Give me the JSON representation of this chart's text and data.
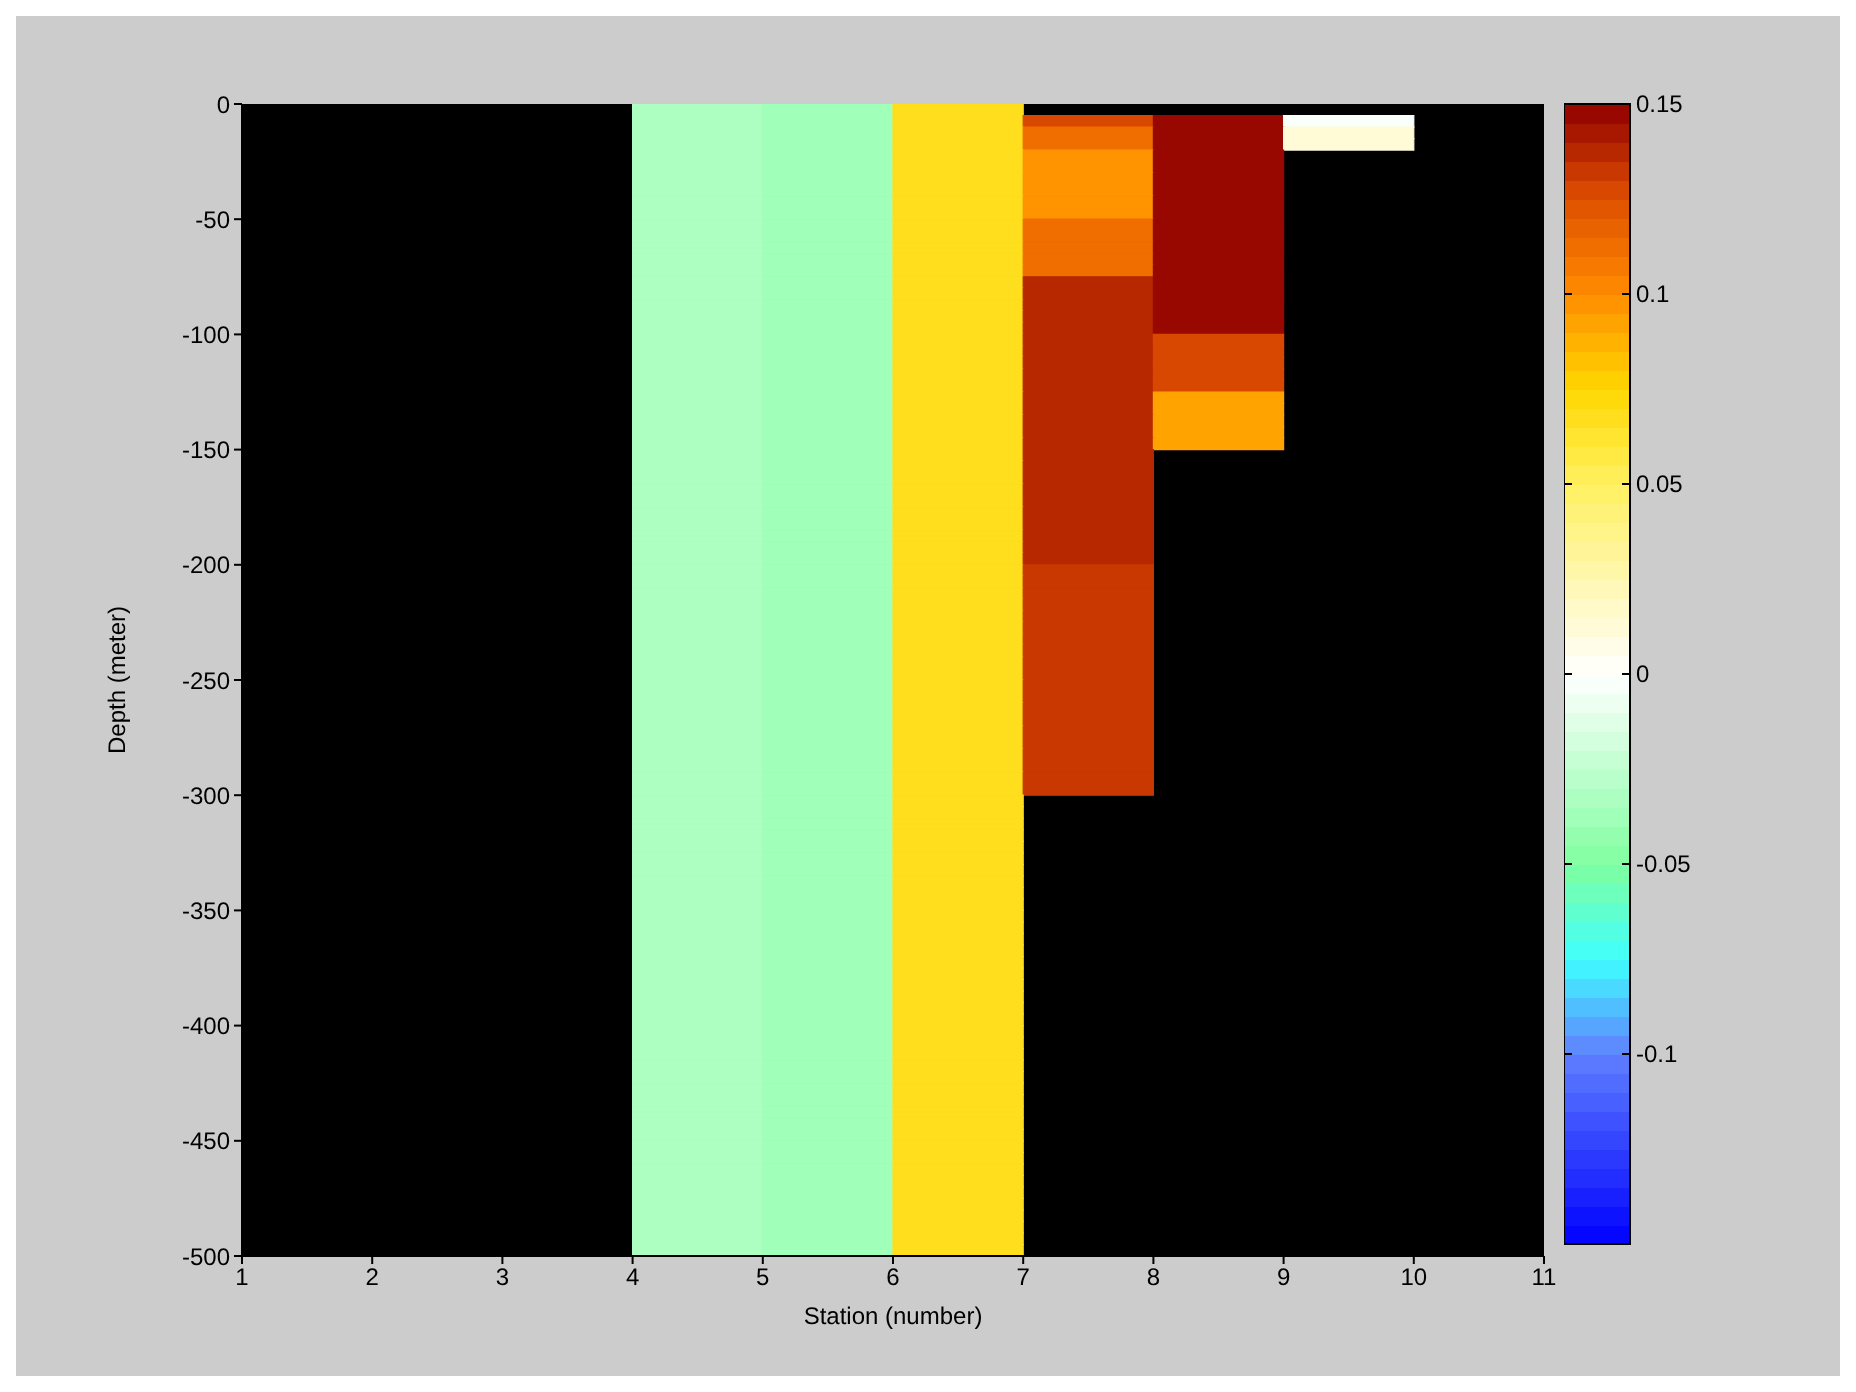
{
  "chart_data": {
    "type": "heatmap",
    "xlabel": "Station (number)",
    "ylabel": "Depth (meter)",
    "cells": [
      [
        null,
        null,
        null,
        -0.035,
        -0.04,
        0.065,
        null,
        null,
        null,
        null
      ],
      [
        null,
        null,
        null,
        -0.035,
        -0.04,
        0.065,
        0.125,
        0.15,
        -0.005,
        null
      ],
      [
        null,
        null,
        null,
        -0.035,
        -0.04,
        0.065,
        0.11,
        0.15,
        0.01,
        null
      ],
      [
        null,
        null,
        null,
        -0.035,
        -0.04,
        0.065,
        0.11,
        0.15,
        0.01,
        null
      ],
      [
        null,
        null,
        null,
        -0.035,
        -0.04,
        0.065,
        0.095,
        0.15,
        null,
        null
      ],
      [
        null,
        null,
        null,
        -0.035,
        -0.04,
        0.065,
        0.095,
        0.15,
        null,
        null
      ],
      [
        null,
        null,
        null,
        -0.035,
        -0.04,
        0.065,
        0.095,
        0.15,
        null,
        null
      ],
      [
        null,
        null,
        null,
        -0.035,
        -0.04,
        0.065,
        0.095,
        0.15,
        null,
        null
      ],
      [
        null,
        null,
        null,
        -0.035,
        -0.04,
        0.065,
        0.095,
        0.15,
        null,
        null
      ],
      [
        null,
        null,
        null,
        -0.035,
        -0.04,
        0.065,
        0.095,
        0.15,
        null,
        null
      ],
      [
        null,
        null,
        null,
        -0.035,
        -0.04,
        0.065,
        0.11,
        0.15,
        null,
        null
      ],
      [
        null,
        null,
        null,
        -0.035,
        -0.04,
        0.065,
        0.11,
        0.15,
        null,
        null
      ],
      [
        null,
        null,
        null,
        -0.035,
        -0.04,
        0.065,
        0.11,
        0.15,
        null,
        null
      ],
      [
        null,
        null,
        null,
        -0.035,
        -0.04,
        0.065,
        0.11,
        0.15,
        null,
        null
      ],
      [
        null,
        null,
        null,
        -0.035,
        -0.04,
        0.065,
        0.11,
        0.15,
        null,
        null
      ],
      [
        null,
        null,
        null,
        -0.035,
        -0.04,
        0.065,
        0.135,
        0.15,
        null,
        null
      ],
      [
        null,
        null,
        null,
        -0.035,
        -0.04,
        0.065,
        0.135,
        0.15,
        null,
        null
      ],
      [
        null,
        null,
        null,
        -0.035,
        -0.04,
        0.065,
        0.135,
        0.15,
        null,
        null
      ],
      [
        null,
        null,
        null,
        -0.035,
        -0.04,
        0.065,
        0.135,
        0.15,
        null,
        null
      ],
      [
        null,
        null,
        null,
        -0.035,
        -0.04,
        0.065,
        0.135,
        0.15,
        null,
        null
      ],
      [
        null,
        null,
        null,
        -0.035,
        -0.04,
        0.065,
        0.135,
        0.125,
        null,
        null
      ],
      [
        null,
        null,
        null,
        -0.035,
        -0.04,
        0.065,
        0.135,
        0.125,
        null,
        null
      ],
      [
        null,
        null,
        null,
        -0.035,
        -0.04,
        0.065,
        0.135,
        0.125,
        null,
        null
      ],
      [
        null,
        null,
        null,
        -0.035,
        -0.04,
        0.065,
        0.135,
        0.125,
        null,
        null
      ],
      [
        null,
        null,
        null,
        -0.035,
        -0.04,
        0.065,
        0.135,
        0.125,
        null,
        null
      ],
      [
        null,
        null,
        null,
        -0.035,
        -0.04,
        0.065,
        0.135,
        0.09,
        null,
        null
      ],
      [
        null,
        null,
        null,
        -0.035,
        -0.04,
        0.065,
        0.135,
        0.09,
        null,
        null
      ],
      [
        null,
        null,
        null,
        -0.035,
        -0.04,
        0.065,
        0.135,
        0.09,
        null,
        null
      ],
      [
        null,
        null,
        null,
        -0.035,
        -0.04,
        0.065,
        0.135,
        0.09,
        null,
        null
      ],
      [
        null,
        null,
        null,
        -0.035,
        -0.04,
        0.065,
        0.135,
        0.09,
        null,
        null
      ],
      [
        null,
        null,
        null,
        -0.035,
        -0.04,
        0.065,
        0.135,
        null,
        null,
        null
      ],
      [
        null,
        null,
        null,
        -0.035,
        -0.04,
        0.065,
        0.135,
        null,
        null,
        null
      ],
      [
        null,
        null,
        null,
        -0.035,
        -0.04,
        0.065,
        0.135,
        null,
        null,
        null
      ],
      [
        null,
        null,
        null,
        -0.035,
        -0.04,
        0.065,
        0.135,
        null,
        null,
        null
      ],
      [
        null,
        null,
        null,
        -0.035,
        -0.04,
        0.065,
        0.135,
        null,
        null,
        null
      ],
      [
        null,
        null,
        null,
        -0.035,
        -0.04,
        0.065,
        0.135,
        null,
        null,
        null
      ],
      [
        null,
        null,
        null,
        -0.035,
        -0.04,
        0.065,
        0.135,
        null,
        null,
        null
      ],
      [
        null,
        null,
        null,
        -0.035,
        -0.04,
        0.065,
        0.135,
        null,
        null,
        null
      ],
      [
        null,
        null,
        null,
        -0.035,
        -0.04,
        0.065,
        0.135,
        null,
        null,
        null
      ],
      [
        null,
        null,
        null,
        -0.035,
        -0.04,
        0.065,
        0.135,
        null,
        null,
        null
      ],
      [
        null,
        null,
        null,
        -0.035,
        -0.04,
        0.065,
        0.13,
        null,
        null,
        null
      ],
      [
        null,
        null,
        null,
        -0.035,
        -0.04,
        0.065,
        0.13,
        null,
        null,
        null
      ],
      [
        null,
        null,
        null,
        -0.035,
        -0.04,
        0.065,
        0.13,
        null,
        null,
        null
      ],
      [
        null,
        null,
        null,
        -0.035,
        -0.04,
        0.065,
        0.13,
        null,
        null,
        null
      ],
      [
        null,
        null,
        null,
        -0.035,
        -0.04,
        0.065,
        0.13,
        null,
        null,
        null
      ],
      [
        null,
        null,
        null,
        -0.035,
        -0.04,
        0.065,
        0.13,
        null,
        null,
        null
      ],
      [
        null,
        null,
        null,
        -0.035,
        -0.04,
        0.065,
        0.13,
        null,
        null,
        null
      ],
      [
        null,
        null,
        null,
        -0.035,
        -0.04,
        0.065,
        0.13,
        null,
        null,
        null
      ],
      [
        null,
        null,
        null,
        -0.035,
        -0.04,
        0.065,
        0.13,
        null,
        null,
        null
      ],
      [
        null,
        null,
        null,
        -0.035,
        -0.04,
        0.065,
        0.13,
        null,
        null,
        null
      ],
      [
        null,
        null,
        null,
        -0.035,
        -0.04,
        0.065,
        0.13,
        null,
        null,
        null
      ],
      [
        null,
        null,
        null,
        -0.035,
        -0.04,
        0.065,
        0.13,
        null,
        null,
        null
      ],
      [
        null,
        null,
        null,
        -0.035,
        -0.04,
        0.065,
        0.13,
        null,
        null,
        null
      ],
      [
        null,
        null,
        null,
        -0.035,
        -0.04,
        0.065,
        0.13,
        null,
        null,
        null
      ],
      [
        null,
        null,
        null,
        -0.035,
        -0.04,
        0.065,
        0.13,
        null,
        null,
        null
      ],
      [
        null,
        null,
        null,
        -0.035,
        -0.04,
        0.065,
        0.13,
        null,
        null,
        null
      ],
      [
        null,
        null,
        null,
        -0.035,
        -0.04,
        0.065,
        0.13,
        null,
        null,
        null
      ],
      [
        null,
        null,
        null,
        -0.035,
        -0.04,
        0.065,
        0.13,
        null,
        null,
        null
      ],
      [
        null,
        null,
        null,
        -0.035,
        -0.04,
        0.065,
        0.13,
        null,
        null,
        null
      ],
      [
        null,
        null,
        null,
        -0.035,
        -0.04,
        0.065,
        0.13,
        null,
        null,
        null
      ],
      [
        null,
        null,
        null,
        -0.035,
        -0.04,
        0.065,
        null,
        null,
        null,
        null
      ],
      [
        null,
        null,
        null,
        -0.035,
        -0.04,
        0.065,
        null,
        null,
        null,
        null
      ],
      [
        null,
        null,
        null,
        -0.035,
        -0.04,
        0.065,
        null,
        null,
        null,
        null
      ],
      [
        null,
        null,
        null,
        -0.035,
        -0.04,
        0.065,
        null,
        null,
        null,
        null
      ],
      [
        null,
        null,
        null,
        -0.035,
        -0.04,
        0.065,
        null,
        null,
        null,
        null
      ],
      [
        null,
        null,
        null,
        -0.035,
        -0.04,
        0.065,
        null,
        null,
        null,
        null
      ],
      [
        null,
        null,
        null,
        -0.035,
        -0.04,
        0.065,
        null,
        null,
        null,
        null
      ],
      [
        null,
        null,
        null,
        -0.035,
        -0.04,
        0.065,
        null,
        null,
        null,
        null
      ],
      [
        null,
        null,
        null,
        -0.035,
        -0.04,
        0.065,
        null,
        null,
        null,
        null
      ],
      [
        null,
        null,
        null,
        -0.035,
        -0.04,
        0.065,
        null,
        null,
        null,
        null
      ],
      [
        null,
        null,
        null,
        -0.035,
        -0.04,
        0.065,
        null,
        null,
        null,
        null
      ],
      [
        null,
        null,
        null,
        -0.035,
        -0.04,
        0.065,
        null,
        null,
        null,
        null
      ],
      [
        null,
        null,
        null,
        -0.035,
        -0.04,
        0.065,
        null,
        null,
        null,
        null
      ],
      [
        null,
        null,
        null,
        -0.035,
        -0.04,
        0.065,
        null,
        null,
        null,
        null
      ],
      [
        null,
        null,
        null,
        -0.035,
        -0.04,
        0.065,
        null,
        null,
        null,
        null
      ],
      [
        null,
        null,
        null,
        -0.035,
        -0.04,
        0.065,
        null,
        null,
        null,
        null
      ],
      [
        null,
        null,
        null,
        -0.035,
        -0.04,
        0.065,
        null,
        null,
        null,
        null
      ],
      [
        null,
        null,
        null,
        -0.035,
        -0.04,
        0.065,
        null,
        null,
        null,
        null
      ],
      [
        null,
        null,
        null,
        -0.035,
        -0.04,
        0.065,
        null,
        null,
        null,
        null
      ],
      [
        null,
        null,
        null,
        -0.035,
        -0.04,
        0.065,
        null,
        null,
        null,
        null
      ],
      [
        null,
        null,
        null,
        -0.035,
        -0.04,
        0.065,
        null,
        null,
        null,
        null
      ],
      [
        null,
        null,
        null,
        -0.035,
        -0.04,
        0.065,
        null,
        null,
        null,
        null
      ],
      [
        null,
        null,
        null,
        -0.035,
        -0.04,
        0.065,
        null,
        null,
        null,
        null
      ],
      [
        null,
        null,
        null,
        -0.035,
        -0.04,
        0.065,
        null,
        null,
        null,
        null
      ],
      [
        null,
        null,
        null,
        -0.035,
        -0.04,
        0.065,
        null,
        null,
        null,
        null
      ],
      [
        null,
        null,
        null,
        -0.035,
        -0.04,
        0.065,
        null,
        null,
        null,
        null
      ],
      [
        null,
        null,
        null,
        -0.035,
        -0.04,
        0.065,
        null,
        null,
        null,
        null
      ],
      [
        null,
        null,
        null,
        -0.035,
        -0.04,
        0.065,
        null,
        null,
        null,
        null
      ],
      [
        null,
        null,
        null,
        -0.035,
        -0.04,
        0.065,
        null,
        null,
        null,
        null
      ],
      [
        null,
        null,
        null,
        -0.035,
        -0.04,
        0.065,
        null,
        null,
        null,
        null
      ],
      [
        null,
        null,
        null,
        -0.035,
        -0.04,
        0.065,
        null,
        null,
        null,
        null
      ],
      [
        null,
        null,
        null,
        -0.035,
        -0.04,
        0.065,
        null,
        null,
        null,
        null
      ],
      [
        null,
        null,
        null,
        -0.035,
        -0.04,
        0.065,
        null,
        null,
        null,
        null
      ],
      [
        null,
        null,
        null,
        -0.035,
        -0.04,
        0.065,
        null,
        null,
        null,
        null
      ],
      [
        null,
        null,
        null,
        -0.035,
        -0.04,
        0.065,
        null,
        null,
        null,
        null
      ],
      [
        null,
        null,
        null,
        -0.035,
        -0.04,
        0.065,
        null,
        null,
        null,
        null
      ],
      [
        null,
        null,
        null,
        -0.035,
        -0.04,
        0.065,
        null,
        null,
        null,
        null
      ],
      [
        null,
        null,
        null,
        -0.035,
        -0.04,
        0.065,
        null,
        null,
        null,
        null
      ],
      [
        null,
        null,
        null,
        -0.035,
        -0.04,
        0.065,
        null,
        null,
        null,
        null
      ],
      [
        null,
        null,
        null,
        -0.035,
        -0.04,
        0.065,
        null,
        null,
        null,
        null
      ]
    ],
    "xlim": [
      1,
      11
    ],
    "xticks": [
      1,
      2,
      3,
      4,
      5,
      6,
      7,
      8,
      9,
      10,
      11
    ],
    "ylim": [
      -500,
      0
    ],
    "yticks": [
      0,
      -50,
      -100,
      -150,
      -200,
      -250,
      -300,
      -350,
      -400,
      -450,
      -500
    ],
    "clim": [
      -0.15,
      0.15
    ],
    "cticks": [
      0.15,
      0.1,
      0.05,
      0,
      -0.05,
      -0.1
    ]
  }
}
